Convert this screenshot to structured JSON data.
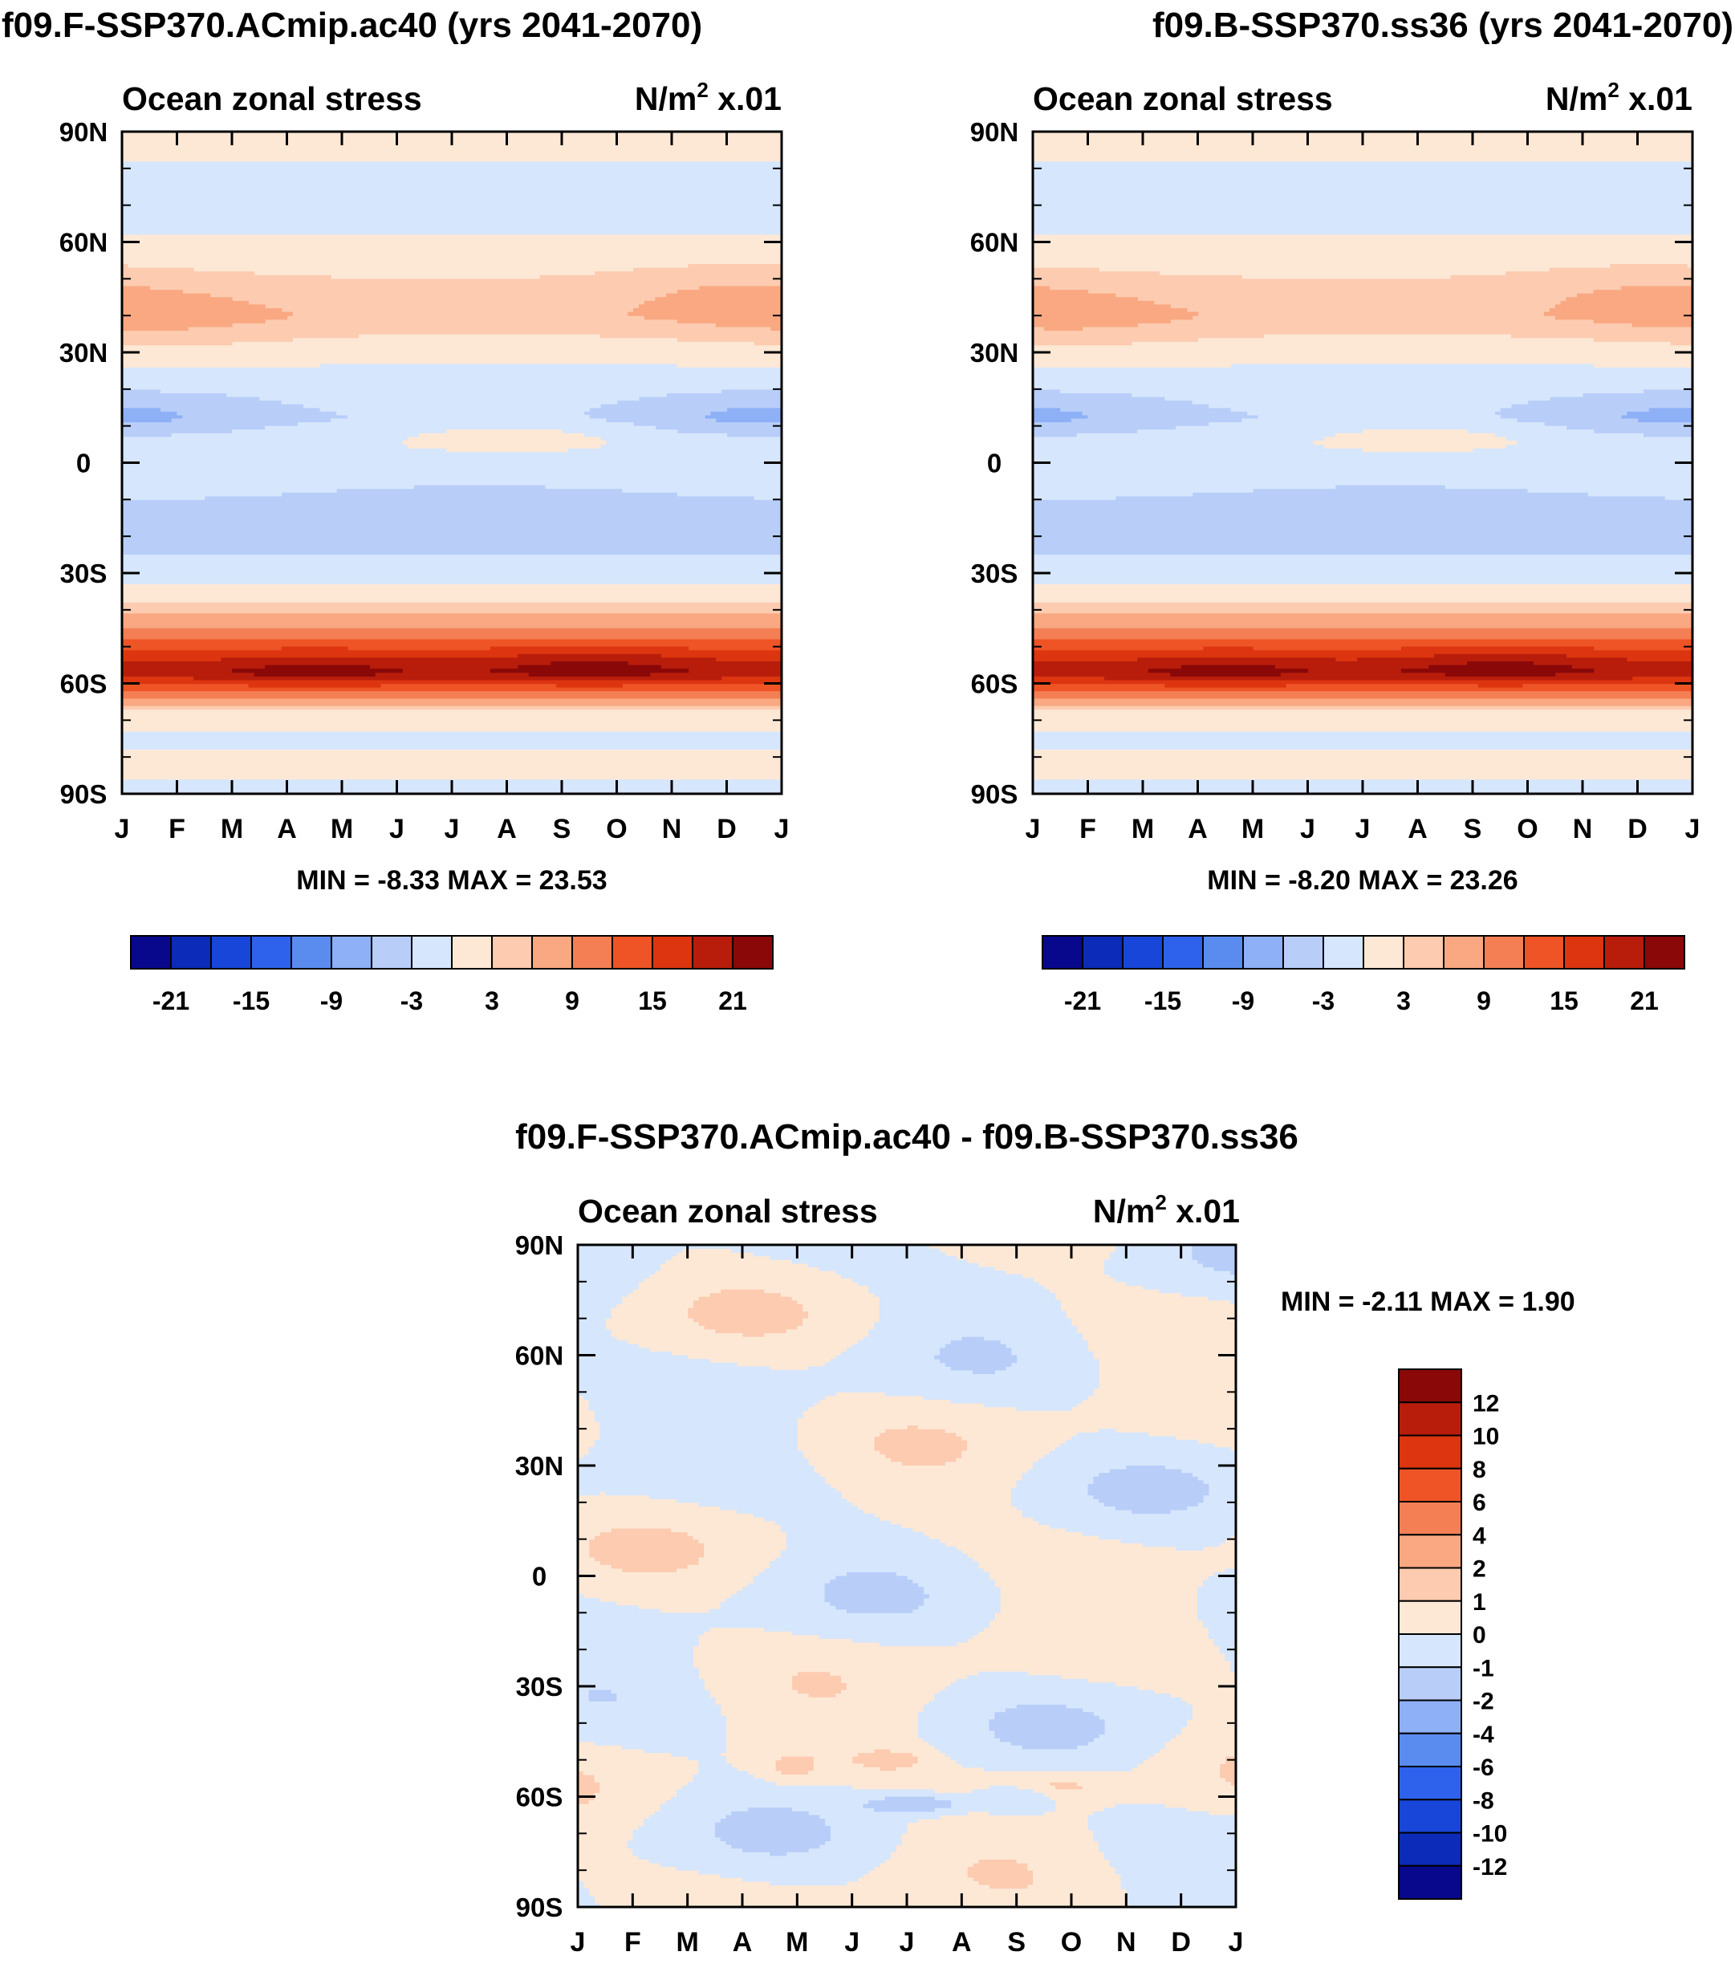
{
  "chart_data": [
    {
      "type": "contour",
      "title": "f09.F-SSP370.ACmip.ac40 (yrs 2041-2070)",
      "left_label": "Ocean zonal stress",
      "units_main": "N/m",
      "units_sup": "2",
      "units_tail": " x.01",
      "x_ticks": [
        "J",
        "F",
        "M",
        "A",
        "M",
        "J",
        "J",
        "A",
        "S",
        "O",
        "N",
        "D",
        "J"
      ],
      "y_ticks": [
        "90N",
        "60N",
        "30N",
        "0",
        "30S",
        "60S",
        "90S"
      ],
      "ylim": [
        -90,
        90
      ],
      "min_label": "MIN =  -8.33",
      "max_label": "MAX =  23.53",
      "colorbar_labels": [
        "-21",
        "-15",
        "-9",
        "-3",
        "3",
        "9",
        "15",
        "21"
      ],
      "zonal_profile": [
        [
          90,
          1
        ],
        [
          75,
          -1
        ],
        [
          62,
          0
        ],
        [
          50,
          3
        ],
        [
          40,
          5
        ],
        [
          30,
          1
        ],
        [
          20,
          -2
        ],
        [
          12,
          -3
        ],
        [
          5,
          -1
        ],
        [
          -5,
          -2
        ],
        [
          -15,
          -4
        ],
        [
          -25,
          -3
        ],
        [
          -35,
          1
        ],
        [
          -45,
          9
        ],
        [
          -52,
          16
        ],
        [
          -57,
          20
        ],
        [
          -62,
          12
        ],
        [
          -68,
          2
        ],
        [
          -75,
          -1
        ],
        [
          -82,
          1
        ],
        [
          -90,
          -1
        ]
      ]
    },
    {
      "type": "contour",
      "title": "f09.B-SSP370.ss36 (yrs 2041-2070)",
      "left_label": "Ocean zonal stress",
      "units_main": "N/m",
      "units_sup": "2",
      "units_tail": " x.01",
      "x_ticks": [
        "J",
        "F",
        "M",
        "A",
        "M",
        "J",
        "J",
        "A",
        "S",
        "O",
        "N",
        "D",
        "J"
      ],
      "y_ticks": [
        "90N",
        "60N",
        "30N",
        "0",
        "30S",
        "60S",
        "90S"
      ],
      "ylim": [
        -90,
        90
      ],
      "min_label": "MIN =  -8.20",
      "max_label": "MAX =  23.26",
      "colorbar_labels": [
        "-21",
        "-15",
        "-9",
        "-3",
        "3",
        "9",
        "15",
        "21"
      ],
      "zonal_profile": [
        [
          90,
          1
        ],
        [
          75,
          -1
        ],
        [
          62,
          0
        ],
        [
          50,
          3
        ],
        [
          40,
          5
        ],
        [
          30,
          1
        ],
        [
          20,
          -2
        ],
        [
          12,
          -3
        ],
        [
          5,
          -1
        ],
        [
          -5,
          -2
        ],
        [
          -15,
          -4
        ],
        [
          -25,
          -3
        ],
        [
          -35,
          1
        ],
        [
          -45,
          9
        ],
        [
          -52,
          16
        ],
        [
          -57,
          20
        ],
        [
          -62,
          12
        ],
        [
          -68,
          2
        ],
        [
          -75,
          -1
        ],
        [
          -82,
          1
        ],
        [
          -90,
          -1
        ]
      ]
    },
    {
      "type": "contour",
      "title": "f09.F-SSP370.ACmip.ac40 - f09.B-SSP370.ss36",
      "left_label": "Ocean zonal stress",
      "units_main": "N/m",
      "units_sup": "2",
      "units_tail": " x.01",
      "x_ticks": [
        "J",
        "F",
        "M",
        "A",
        "M",
        "J",
        "J",
        "A",
        "S",
        "O",
        "N",
        "D",
        "J"
      ],
      "y_ticks": [
        "90N",
        "60N",
        "30N",
        "0",
        "30S",
        "60S",
        "90S"
      ],
      "ylim": [
        -90,
        90
      ],
      "min_label": "MIN =  -2.11",
      "max_label": "MAX =   1.90",
      "colorbar_labels": [
        "12",
        "10",
        "8",
        "6",
        "4",
        "2",
        "1",
        "0",
        "-1",
        "-2",
        "-4",
        "-6",
        "-8",
        "-10",
        "-12"
      ]
    }
  ],
  "colors": {
    "main_scale": [
      "#08088c",
      "#0b2bb8",
      "#1746d8",
      "#2e62ec",
      "#5a8cf0",
      "#8eb0f6",
      "#b8cef9",
      "#d6e6fc",
      "#fde8d6",
      "#fccbb0",
      "#f9a882",
      "#f47f55",
      "#ee5425",
      "#dc3510",
      "#b81d0b",
      "#8a0808"
    ],
    "diff_scale": [
      "#8a0808",
      "#b81d0b",
      "#dc3510",
      "#ee5425",
      "#f47f55",
      "#f9a882",
      "#fccbb0",
      "#fde8d6",
      "#d6e6fc",
      "#b8cef9",
      "#8eb0f6",
      "#5a8cf0",
      "#2e62ec",
      "#1746d8",
      "#0b2bb8",
      "#08088c"
    ]
  }
}
